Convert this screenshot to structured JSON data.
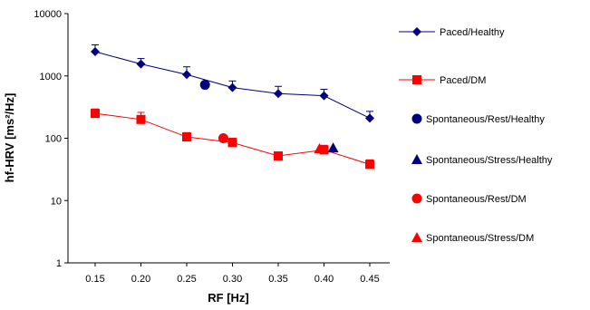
{
  "chart_data": {
    "type": "line",
    "x_scale": "categorical",
    "y_scale": "log",
    "categories": [
      "0.15",
      "0.20",
      "0.25",
      "0.30",
      "0.35",
      "0.40",
      "0.45"
    ],
    "xlabel": "RF [Hz]",
    "ylabel": "hf-HRV [ms²/Hz]",
    "ylim": [
      1,
      10000
    ],
    "y_ticks": [
      "1",
      "10",
      "100",
      "1000",
      "10000"
    ],
    "grid": false,
    "legend_position": "right",
    "series": [
      {
        "name": "Paced/Healthy",
        "kind": "line",
        "marker": "diamond",
        "color": "#000080",
        "points": [
          {
            "x": 0.15,
            "y": 2450,
            "err": 700
          },
          {
            "x": 0.2,
            "y": 1550,
            "err": 350
          },
          {
            "x": 0.25,
            "y": 1050,
            "err": 350
          },
          {
            "x": 0.3,
            "y": 650,
            "err": 180
          },
          {
            "x": 0.35,
            "y": 520,
            "err": 160
          },
          {
            "x": 0.4,
            "y": 480,
            "err": 130
          },
          {
            "x": 0.45,
            "y": 210,
            "err": 60
          }
        ]
      },
      {
        "name": "Paced/DM",
        "kind": "line",
        "marker": "square",
        "color": "#ff0000",
        "points": [
          {
            "x": 0.15,
            "y": 250,
            "err": 45
          },
          {
            "x": 0.2,
            "y": 200,
            "err": 60
          },
          {
            "x": 0.25,
            "y": 105,
            "err": 18
          },
          {
            "x": 0.3,
            "y": 85,
            "err": 15
          },
          {
            "x": 0.35,
            "y": 52,
            "err": 6
          },
          {
            "x": 0.4,
            "y": 65,
            "err": 12
          },
          {
            "x": 0.45,
            "y": 38,
            "err": 7
          }
        ]
      },
      {
        "name": "Spontaneous/Rest/Healthy",
        "kind": "point",
        "marker": "circle",
        "color": "#000080",
        "points": [
          {
            "x": 0.27,
            "y": 720
          }
        ]
      },
      {
        "name": "Spontaneous/Stress/Healthy",
        "kind": "point",
        "marker": "triangle",
        "color": "#000080",
        "points": [
          {
            "x": 0.41,
            "y": 70
          }
        ]
      },
      {
        "name": "Spontaneous/Rest/DM",
        "kind": "point",
        "marker": "circle",
        "color": "#ff0000",
        "points": [
          {
            "x": 0.29,
            "y": 100
          }
        ]
      },
      {
        "name": "Spontaneous/Stress/DM",
        "kind": "point",
        "marker": "triangle",
        "color": "#ff0000",
        "points": [
          {
            "x": 0.395,
            "y": 68
          }
        ]
      }
    ]
  }
}
